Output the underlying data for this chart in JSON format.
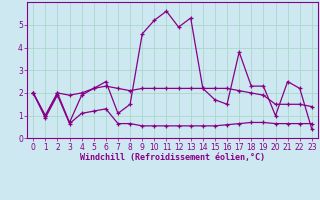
{
  "title": "",
  "xlabel": "Windchill (Refroidissement éolien,°C)",
  "ylabel": "",
  "background_color": "#cde8f0",
  "grid_color": "#a8d8cc",
  "line_color": "#880088",
  "xlim": [
    -0.5,
    23.5
  ],
  "ylim": [
    0,
    6.0
  ],
  "xticks": [
    0,
    1,
    2,
    3,
    4,
    5,
    6,
    7,
    8,
    9,
    10,
    11,
    12,
    13,
    14,
    15,
    16,
    17,
    18,
    19,
    20,
    21,
    22,
    23
  ],
  "yticks": [
    0,
    1,
    2,
    3,
    4,
    5
  ],
  "series_main": [
    2.0,
    1.0,
    2.0,
    0.7,
    1.9,
    2.2,
    2.5,
    1.1,
    1.5,
    4.6,
    5.2,
    5.6,
    4.9,
    5.3,
    2.2,
    1.7,
    1.5,
    3.8,
    2.3,
    2.3,
    1.0,
    2.5,
    2.2,
    0.4
  ],
  "series_upper": [
    2.0,
    1.0,
    2.0,
    1.9,
    2.0,
    2.2,
    2.3,
    2.2,
    2.1,
    2.2,
    2.2,
    2.2,
    2.2,
    2.2,
    2.2,
    2.2,
    2.2,
    2.1,
    2.0,
    1.9,
    1.5,
    1.5,
    1.5,
    1.4
  ],
  "series_lower": [
    2.0,
    0.9,
    1.9,
    0.65,
    1.1,
    1.2,
    1.3,
    0.65,
    0.65,
    0.55,
    0.55,
    0.55,
    0.55,
    0.55,
    0.55,
    0.55,
    0.6,
    0.65,
    0.7,
    0.7,
    0.65,
    0.65,
    0.65,
    0.65
  ],
  "tick_fontsize": 5.5,
  "xlabel_fontsize": 6.0
}
